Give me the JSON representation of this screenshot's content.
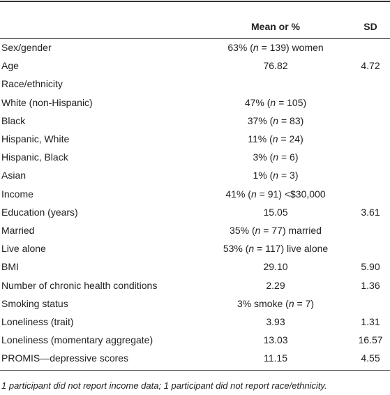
{
  "table": {
    "header": {
      "mean": "Mean or %",
      "sd": "SD"
    },
    "rows": [
      {
        "label": "Sex/gender",
        "mean": [
          "63% (",
          "n",
          " = 139) women"
        ]
      },
      {
        "label": "Age",
        "mean": "76.82",
        "sd": "4.72"
      },
      {
        "label": "Race/ethnicity"
      },
      {
        "label": "White (non-Hispanic)",
        "mean": [
          "47% (",
          "n",
          " = 105)"
        ]
      },
      {
        "label": "Black",
        "mean": [
          "37% (",
          "n",
          " = 83)"
        ]
      },
      {
        "label": "Hispanic, White",
        "mean": [
          "11% (",
          "n",
          " = 24)"
        ]
      },
      {
        "label": "Hispanic, Black",
        "mean": [
          "3% (",
          "n",
          " = 6)"
        ]
      },
      {
        "label": "Asian",
        "mean": [
          "1% (",
          "n",
          " = 3)"
        ]
      },
      {
        "label": "Income",
        "mean": [
          "41% (",
          "n",
          " = 91) <$30,000"
        ]
      },
      {
        "label": "Education (years)",
        "mean": "15.05",
        "sd": "3.61"
      },
      {
        "label": "Married",
        "mean": [
          "35% (",
          "n",
          " = 77) married"
        ]
      },
      {
        "label": "Live alone",
        "mean": [
          "53% (",
          "n",
          " = 117) live alone"
        ]
      },
      {
        "label": "BMI",
        "mean": "29.10",
        "sd": "5.90"
      },
      {
        "label": "Number of chronic health conditions",
        "mean": "2.29",
        "sd": "1.36"
      },
      {
        "label": "Smoking status",
        "mean": [
          "3% smoke (",
          "n",
          " = 7)"
        ]
      },
      {
        "label": "Loneliness (trait)",
        "mean": "3.93",
        "sd": "1.31"
      },
      {
        "label": "Loneliness (momentary aggregate)",
        "mean": "13.03",
        "sd": "16.57"
      },
      {
        "label": "PROMIS—depressive scores",
        "mean": "11.15",
        "sd": "4.55"
      }
    ],
    "footnote": "1 participant did not report income data; 1 participant did not report race/ethnicity."
  }
}
